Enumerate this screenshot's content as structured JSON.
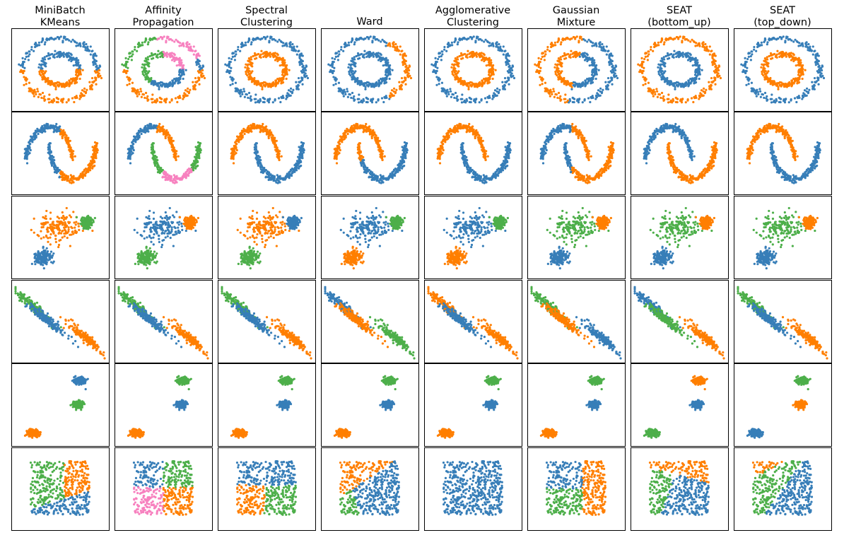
{
  "chart_data": {
    "type": "scatter",
    "title": "",
    "xlabel": "",
    "ylabel": "",
    "grid": false,
    "legend": "none",
    "axes_ticks": "none",
    "colors": [
      "#377eb8",
      "#ff7f00",
      "#4daf4a",
      "#f781bf"
    ],
    "columns": [
      {
        "title": [
          "MiniBatch",
          "KMeans"
        ]
      },
      {
        "title": [
          "Affinity",
          "Propagation"
        ]
      },
      {
        "title": [
          "Spectral",
          "Clustering"
        ]
      },
      {
        "title": [
          "Ward"
        ]
      },
      {
        "title": [
          "Agglomerative",
          "Clustering"
        ]
      },
      {
        "title": [
          "Gaussian",
          "Mixture"
        ]
      },
      {
        "title": [
          "SEAT",
          "(bottom_up)"
        ]
      },
      {
        "title": [
          "SEAT",
          "(top_down)"
        ]
      }
    ],
    "datasets": [
      {
        "name": "noisy_circles",
        "n_points": 500
      },
      {
        "name": "noisy_moons",
        "n_points": 500
      },
      {
        "name": "varied_blobs",
        "n_points": 500
      },
      {
        "name": "anisotropic_blobs",
        "n_points": 500
      },
      {
        "name": "blobs",
        "n_points": 500
      },
      {
        "name": "uniform_no_structure",
        "n_points": 500
      }
    ],
    "assignments": [
      [
        {
          "method": "split",
          "ax": 0.0,
          "ay": -1.0,
          "colors": [
            0,
            1
          ]
        },
        {
          "method": "compound",
          "rules": [
            {
              "cond": "outer_angle",
              "a0": 100,
              "a1": 180,
              "c": 2
            },
            {
              "cond": "outer_angle",
              "a0": 20,
              "a1": 100,
              "c": 3
            },
            {
              "cond": "outer_angle",
              "a0": 180,
              "a1": 360,
              "c": 1
            },
            {
              "cond": "inner_angle",
              "a0": 90,
              "a1": 230,
              "c": 2
            },
            {
              "cond": "inner_angle",
              "a0": 0,
              "a1": 90,
              "c": 3
            },
            {
              "cond": "inner_angle",
              "a0": 230,
              "a1": 360,
              "c": 0
            }
          ]
        },
        {
          "method": "ring",
          "colors": [
            0,
            1
          ]
        },
        {
          "method": "compound",
          "rules": [
            {
              "cond": "outer_angle",
              "a0": -60,
              "a1": 60,
              "c": 1
            },
            {
              "cond": "default",
              "c": 0
            }
          ]
        },
        {
          "method": "ring",
          "colors": [
            0,
            1
          ]
        },
        {
          "method": "compound",
          "rules": [
            {
              "cond": "halfplane",
              "ax": -1.0,
              "ay": 0.2,
              "t": 0.0,
              "c": 1
            },
            {
              "cond": "default",
              "c": 0
            }
          ]
        },
        {
          "method": "ring",
          "colors": [
            1,
            0
          ]
        },
        {
          "method": "ring",
          "colors": [
            0,
            1
          ]
        }
      ],
      [
        {
          "method": "split",
          "ax": 1.0,
          "ay": 0.0,
          "t": 0.5,
          "colors": [
            0,
            1
          ]
        },
        {
          "method": "compound",
          "rules": [
            {
              "cond": "moon_t",
              "moon": 0,
              "t0": 0.0,
              "t1": 0.55,
              "c": 0
            },
            {
              "cond": "moon_t",
              "moon": 0,
              "t0": 0.55,
              "t1": 1.01,
              "c": 1
            },
            {
              "cond": "moon_t",
              "moon": 1,
              "t0": 0.0,
              "t1": 0.3,
              "c": 2
            },
            {
              "cond": "moon_t",
              "moon": 1,
              "t0": 0.3,
              "t1": 0.75,
              "c": 3
            },
            {
              "cond": "moon_t",
              "moon": 1,
              "t0": 0.75,
              "t1": 1.01,
              "c": 2
            }
          ]
        },
        {
          "method": "moons",
          "colors": [
            1,
            0
          ]
        },
        {
          "method": "compound",
          "rules": [
            {
              "cond": "moon_t",
              "moon": 1,
              "t0": 0.0,
              "t1": 0.15,
              "c": 1
            },
            {
              "cond": "moon",
              "moon": 0,
              "c": 1
            },
            {
              "cond": "default",
              "c": 0
            }
          ]
        },
        {
          "method": "moons",
          "colors": [
            1,
            0
          ]
        },
        {
          "method": "split",
          "ax": 1.0,
          "ay": 0.0,
          "t": 0.45,
          "colors": [
            0,
            1
          ]
        },
        {
          "method": "moons",
          "colors": [
            0,
            1
          ]
        },
        {
          "method": "moons",
          "colors": [
            1,
            0
          ]
        }
      ],
      [
        {
          "method": "blob",
          "colors": [
            0,
            1,
            2
          ]
        },
        {
          "method": "blob",
          "colors": [
            2,
            0,
            1
          ]
        },
        {
          "method": "blob",
          "colors": [
            2,
            1,
            0
          ]
        },
        {
          "method": "blob",
          "colors": [
            1,
            0,
            2
          ]
        },
        {
          "method": "blob",
          "colors": [
            1,
            0,
            2
          ]
        },
        {
          "method": "blob",
          "colors": [
            0,
            2,
            1
          ]
        },
        {
          "method": "blob",
          "colors": [
            0,
            2,
            1
          ]
        },
        {
          "method": "blob",
          "colors": [
            0,
            2,
            1
          ]
        }
      ],
      [
        {
          "method": "blob",
          "colors": [
            1,
            2,
            0
          ]
        },
        {
          "method": "blob",
          "colors": [
            1,
            2,
            0
          ]
        },
        {
          "method": "blob",
          "colors": [
            1,
            2,
            0
          ]
        },
        {
          "method": "blob",
          "colors": [
            2,
            0,
            1
          ]
        },
        {
          "method": "blob",
          "colors": [
            1,
            1,
            0
          ]
        },
        {
          "method": "blob",
          "colors": [
            0,
            2,
            1
          ]
        },
        {
          "method": "blob",
          "colors": [
            1,
            0,
            2
          ]
        },
        {
          "method": "blob",
          "colors": [
            1,
            2,
            0
          ]
        }
      ],
      [
        {
          "method": "blob",
          "colors": [
            1,
            0,
            2
          ]
        },
        {
          "method": "blob",
          "colors": [
            1,
            2,
            0
          ]
        },
        {
          "method": "blob",
          "colors": [
            1,
            2,
            0
          ]
        },
        {
          "method": "blob",
          "colors": [
            1,
            2,
            0
          ]
        },
        {
          "method": "blob",
          "colors": [
            1,
            2,
            0
          ]
        },
        {
          "method": "blob",
          "colors": [
            1,
            2,
            0
          ]
        },
        {
          "method": "blob",
          "colors": [
            2,
            1,
            0
          ]
        },
        {
          "method": "blob",
          "colors": [
            0,
            2,
            1
          ]
        }
      ],
      [
        {
          "method": "compound",
          "rules": [
            {
              "cond": "halfplane",
              "ax": 0.35,
              "ay": -1.0,
              "t": 0.15,
              "c": 0
            },
            {
              "cond": "halfplane",
              "ax": 1.0,
              "ay": 0.0,
              "t": 0.05,
              "c": 1
            },
            {
              "cond": "default",
              "c": 2
            }
          ]
        },
        {
          "method": "quad",
          "colors": [
            0,
            2,
            3,
            1
          ]
        },
        {
          "method": "compound",
          "rules": [
            {
              "cond": "halfplane",
              "ax": 0.0,
              "ay": 1.0,
              "t": 0.05,
              "c": 0
            },
            {
              "cond": "halfplane",
              "ax": -1.0,
              "ay": 0.1,
              "t": 0.0,
              "c": 1
            },
            {
              "cond": "default",
              "c": 2
            }
          ]
        },
        {
          "method": "compound",
          "rules": [
            {
              "cond": "halfplane",
              "ax": -0.8,
              "ay": 1.0,
              "t": 0.15,
              "c": 1
            },
            {
              "cond": "halfplane",
              "ax": -1.0,
              "ay": -0.3,
              "t": 0.2,
              "c": 2
            },
            {
              "cond": "default",
              "c": 0
            }
          ]
        },
        {
          "method": "compound",
          "rules": [
            {
              "cond": "corner",
              "x0": 0.97,
              "y0": 0.22,
              "r": 0.015,
              "c": 2
            },
            {
              "cond": "corner",
              "x0": 0.03,
              "y0": 0.95,
              "r": 0.015,
              "c": 1
            },
            {
              "cond": "default",
              "c": 0
            }
          ]
        },
        {
          "method": "compound",
          "rules": [
            {
              "cond": "halfplane",
              "ax": 1.0,
              "ay": 0.0,
              "t": 0.07,
              "c": 1
            },
            {
              "cond": "halfplane",
              "ax": 0.0,
              "ay": -1.0,
              "t": 0.0,
              "c": 2
            },
            {
              "cond": "default",
              "c": 0
            }
          ]
        },
        {
          "method": "compound",
          "rules": [
            {
              "cond": "halfplane",
              "ax": 0.3,
              "ay": 1.0,
              "t": 0.18,
              "c": 1
            },
            {
              "cond": "halfplane",
              "ax": -1.0,
              "ay": 0.3,
              "t": 0.1,
              "c": 2
            },
            {
              "cond": "default",
              "c": 0
            }
          ]
        },
        {
          "method": "compound",
          "rules": [
            {
              "cond": "halfplane",
              "ax": -0.6,
              "ay": 1.0,
              "t": 0.35,
              "c": 1
            },
            {
              "cond": "halfplane",
              "ax": 1.0,
              "ay": -0.6,
              "t": 0.0,
              "c": 0
            },
            {
              "cond": "default",
              "c": 2
            }
          ]
        }
      ]
    ]
  }
}
